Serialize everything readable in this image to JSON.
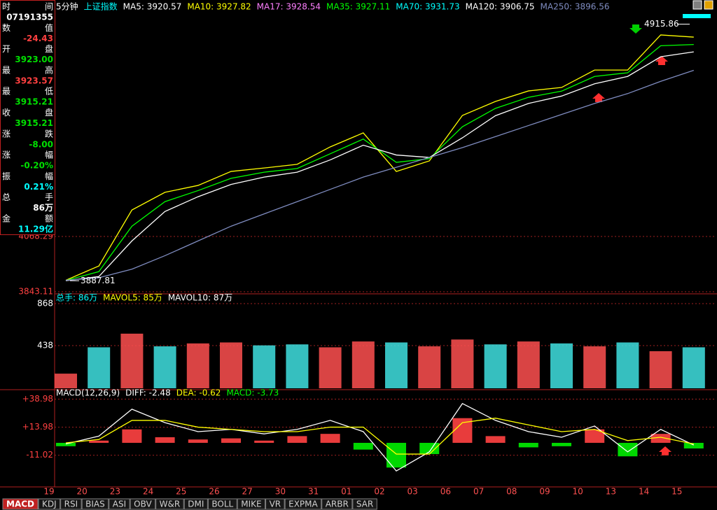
{
  "info_panel": {
    "rows": [
      {
        "label": [
          "时",
          "间"
        ],
        "value": "07191355",
        "color": "#ffffff"
      },
      {
        "label": [
          "数",
          "值"
        ],
        "value": "-24.43",
        "color": "#ff4040"
      },
      {
        "label": [
          "开",
          "盘"
        ],
        "value": "3923.00",
        "color": "#00e000"
      },
      {
        "label": [
          "最",
          "高"
        ],
        "value": "3923.57",
        "color": "#ff4040"
      },
      {
        "label": [
          "最",
          "低"
        ],
        "value": "3915.21",
        "color": "#00e000"
      },
      {
        "label": [
          "收",
          "盘"
        ],
        "value": "3915.21",
        "color": "#00e000"
      },
      {
        "label": [
          "涨",
          "跌"
        ],
        "value": "-8.00",
        "color": "#00e000"
      },
      {
        "label": [
          "涨",
          "幅"
        ],
        "value": "-0.20%",
        "color": "#00e000"
      },
      {
        "label": [
          "振",
          "幅"
        ],
        "value": "0.21%",
        "color": "#00ffff"
      },
      {
        "label": [
          "总",
          "手"
        ],
        "value": "86万",
        "color": "#ffffff"
      },
      {
        "label": [
          "金",
          "额"
        ],
        "value": "11.29亿",
        "color": "#00ffff"
      }
    ]
  },
  "chart_data": [
    {
      "type": "line",
      "period": "5分钟",
      "symbol": "上证指数",
      "series": [
        {
          "label": "MA5: 3920.57",
          "color": "#ffffff"
        },
        {
          "label": "MA10: 3927.82",
          "color": "#ffff00",
          "values": [
            3890,
            3948,
            4176,
            4248,
            4276,
            4333,
            4347,
            4362,
            4433,
            4490,
            4333,
            4376,
            4561,
            4618,
            4661,
            4675,
            4746,
            4746,
            4889,
            4880
          ]
        },
        {
          "label": "MA17: 3928.54",
          "color": "#ff80ff"
        },
        {
          "label": "MA35: 3927.11",
          "color": "#00ff00",
          "values": [
            3889,
            3925,
            4110,
            4210,
            4255,
            4305,
            4330,
            4345,
            4405,
            4465,
            4370,
            4385,
            4515,
            4590,
            4635,
            4660,
            4720,
            4735,
            4845,
            4850
          ]
        },
        {
          "label": "MA70: 3931.73",
          "color": "#00ffff"
        },
        {
          "label": "MA120: 3906.75",
          "color": "#ffffff",
          "values": [
            3888,
            3905,
            4050,
            4170,
            4230,
            4280,
            4310,
            4330,
            4380,
            4440,
            4400,
            4390,
            4470,
            4560,
            4610,
            4640,
            4690,
            4720,
            4800,
            4820
          ]
        },
        {
          "label": "MA250: 3896.56",
          "color": "#7f8cc0",
          "values": [
            3890,
            3900,
            3935,
            3990,
            4050,
            4110,
            4160,
            4210,
            4260,
            4310,
            4350,
            4390,
            4430,
            4475,
            4520,
            4565,
            4610,
            4650,
            4700,
            4745
          ]
        }
      ],
      "ylim": [
        3843.11,
        5017
      ],
      "yticks": [
        3843.11,
        4068.29
      ],
      "annotations": [
        {
          "value": 4915.86
        },
        {
          "value": 3887.81
        }
      ]
    },
    {
      "type": "bar",
      "legend": [
        {
          "label": "总手: 86万",
          "color": "#00ffff"
        },
        {
          "label": "MAVOL5: 85万",
          "color": "#ffff00"
        },
        {
          "label": "MAVOL10: 87万",
          "color": "#ffffff"
        }
      ],
      "values": [
        150,
        420,
        560,
        430,
        460,
        470,
        440,
        450,
        420,
        480,
        470,
        430,
        500,
        450,
        480,
        460,
        430,
        470,
        380,
        420
      ],
      "bar_colors": [
        "#ff5050",
        "#40e0e0",
        "#ff5050",
        "#40e0e0",
        "#ff5050",
        "#ff5050",
        "#40e0e0",
        "#40e0e0",
        "#ff5050",
        "#ff5050",
        "#40e0e0",
        "#ff5050",
        "#ff5050",
        "#40e0e0",
        "#ff5050",
        "#40e0e0",
        "#ff5050",
        "#40e0e0",
        "#ff5050",
        "#40e0e0"
      ],
      "ylim": [
        0,
        868
      ],
      "yticks": [
        438,
        868
      ]
    },
    {
      "type": "macd",
      "title": "MACD(12,26,9)",
      "series": [
        {
          "label": "DIFF: -2.48",
          "color": "#ffffff",
          "values": [
            -1,
            6,
            30,
            18,
            10,
            12,
            8,
            12,
            20,
            10,
            -25,
            -8,
            35,
            20,
            10,
            5,
            15,
            -8,
            12,
            -2
          ]
        },
        {
          "label": "DEA: -0.62",
          "color": "#ffff00",
          "values": [
            0,
            3,
            20,
            20,
            14,
            12,
            10,
            10,
            14,
            14,
            -10,
            -10,
            18,
            22,
            16,
            10,
            12,
            2,
            5,
            -1
          ]
        }
      ],
      "bars": {
        "label": "MACD: -3.73",
        "color": "#00ff00",
        "values": [
          -3,
          2,
          12,
          5,
          3,
          4,
          2,
          6,
          8,
          -6,
          -22,
          -10,
          22,
          6,
          -4,
          -3,
          12,
          -12,
          8,
          -5
        ],
        "positive_color": "#e83c3c",
        "negative_color": "#00d800"
      },
      "ylim": [
        -38,
        43
      ],
      "yticks": [
        {
          "value": 38.98,
          "label": "+38.98"
        },
        {
          "value": 13.98,
          "label": "+13.98"
        },
        -11.02
      ],
      "categories": [
        "19",
        "20",
        "23",
        "24",
        "25",
        "26",
        "27",
        "30",
        "31",
        "01",
        "02",
        "03",
        "06",
        "07",
        "08",
        "09",
        "10",
        "13",
        "14",
        "15"
      ]
    }
  ],
  "tabs": [
    "MACD",
    "KDJ",
    "RSI",
    "BIAS",
    "ASI",
    "OBV",
    "W&R",
    "DMI",
    "BOLL",
    "MIKE",
    "VR",
    "EXPMA",
    "ARBR",
    "SAR"
  ]
}
